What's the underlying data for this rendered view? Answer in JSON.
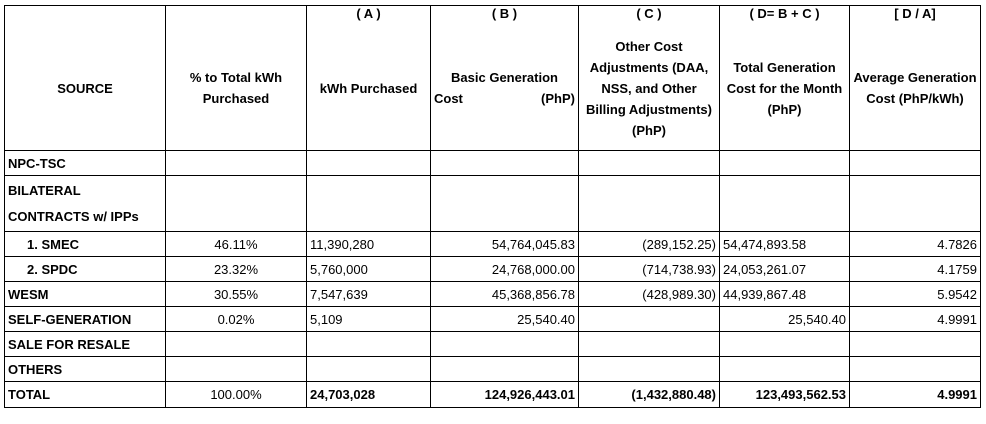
{
  "headers": {
    "letters": [
      "",
      "",
      "( A )",
      "( B )",
      "( C )",
      "( D= B + C )",
      "[ D / A]"
    ],
    "source": "SOURCE",
    "pct": "% to Total kWh Purchased",
    "kwh": "kWh Purchased",
    "basic_line1": "Basic Generation",
    "basic_left": "Cost",
    "basic_right": "(PhP)",
    "other": "Other Cost Adjustments (DAA, NSS, and Other Billing Adjustments) (PhP)",
    "total_gen": "Total Generation Cost for the Month (PhP)",
    "avg": "Average Generation Cost (PhP/kWh)"
  },
  "rows": {
    "npc": {
      "source": "NPC-TSC"
    },
    "bilateral": {
      "line1": "BILATERAL",
      "line2": "CONTRACTS w/ IPPs"
    },
    "smec": {
      "source": "1.   SMEC",
      "pct": "46.11%",
      "kwh": "11,390,280",
      "basic": "54,764,045.83",
      "other": "(289,152.25)",
      "total": "54,474,893.58",
      "avg": "4.7826"
    },
    "spdc": {
      "source": "2.   SPDC",
      "pct": "23.32%",
      "kwh": "5,760,000",
      "basic": "24,768,000.00",
      "other": "(714,738.93)",
      "total": "24,053,261.07",
      "avg": "4.1759"
    },
    "wesm": {
      "source": "WESM",
      "pct": "30.55%",
      "kwh": "7,547,639",
      "basic": "45,368,856.78",
      "other": "(428,989.30)",
      "total": "44,939,867.48",
      "avg": "5.9542"
    },
    "selfgen": {
      "source": "SELF-GENERATION",
      "pct": "0.02%",
      "kwh": "5,109",
      "basic": "25,540.40",
      "other": "",
      "total": "25,540.40",
      "avg": "4.9991"
    },
    "resale": {
      "source": "SALE FOR RESALE"
    },
    "others": {
      "source": "OTHERS"
    },
    "total": {
      "source": "TOTAL",
      "pct": "100.00%",
      "kwh": "24,703,028",
      "basic": "124,926,443.01",
      "other": "(1,432,880.48)",
      "total": "123,493,562.53",
      "avg": "4.9991"
    }
  }
}
